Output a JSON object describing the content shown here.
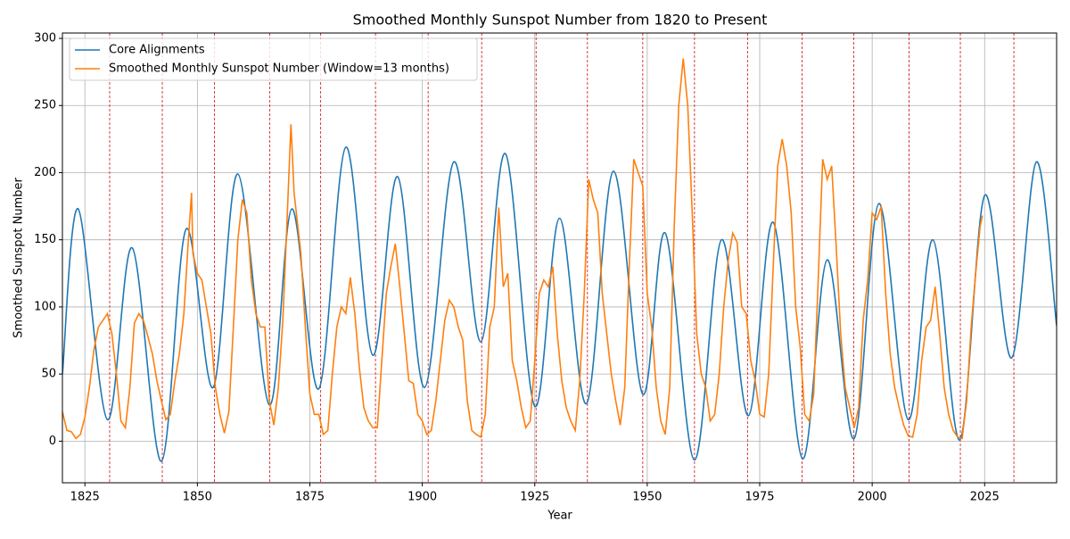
{
  "chart_data": {
    "type": "line",
    "title": "Smoothed Monthly Sunspot Number from 1820 to Present",
    "xlabel": "Year",
    "ylabel": "Smoothed Sunspot Number",
    "xlim": [
      1820,
      2041
    ],
    "ylim": [
      -31,
      304
    ],
    "xticks": [
      1825,
      1850,
      1875,
      1900,
      1925,
      1950,
      1975,
      2000,
      2025
    ],
    "yticks": [
      0,
      50,
      100,
      150,
      200,
      250,
      300
    ],
    "grid": true,
    "legend": "upper left",
    "cycle_minima": {
      "color": "#d62728",
      "x": [
        1830.5,
        1842.2,
        1853.8,
        1866.1,
        1877.4,
        1889.6,
        1901.3,
        1913.2,
        1925.3,
        1936.7,
        1949.0,
        1960.5,
        1972.3,
        1984.4,
        1995.9,
        2008.2,
        2019.6,
        2031.5
      ]
    },
    "series": [
      {
        "name": "Core Alignments",
        "color": "#1f77b4",
        "smooth": true,
        "x": [
          1820,
          1823.5,
          1830,
          1835.5,
          1842,
          1847.5,
          1853.5,
          1859,
          1866,
          1871,
          1877,
          1883,
          1889,
          1894.5,
          1900.5,
          1907,
          1913,
          1918.5,
          1925,
          1930.5,
          1936.5,
          1942.5,
          1949,
          1954,
          1960.5,
          1966.5,
          1972.5,
          1978,
          1984.5,
          1990,
          1996,
          2001.5,
          2008,
          2013.5,
          2019.5,
          2025,
          2031,
          2036.5,
          2041
        ],
        "values": [
          50,
          173,
          16,
          144,
          -15,
          158,
          40,
          199,
          27,
          173,
          39,
          219,
          64,
          197,
          40,
          208,
          74,
          214,
          26,
          166,
          28,
          201,
          35,
          155,
          -14,
          150,
          19,
          163,
          -13,
          135,
          2,
          177,
          16,
          150,
          1,
          183,
          62,
          208,
          86
        ]
      },
      {
        "name": "Smoothed Monthly Sunspot Number (Window=13 months)",
        "color": "#ff7f0e",
        "smooth": false,
        "x": [
          1820,
          1821,
          1822,
          1823,
          1824,
          1825,
          1826,
          1827,
          1828,
          1829,
          1830,
          1831,
          1832,
          1833,
          1834,
          1835,
          1836,
          1837,
          1838,
          1839,
          1840,
          1841,
          1842,
          1843,
          1844,
          1845,
          1846,
          1847,
          1848,
          1848.7,
          1849,
          1850,
          1851,
          1852,
          1853,
          1854,
          1855,
          1856,
          1857,
          1858,
          1859,
          1860,
          1861,
          1862,
          1863,
          1864,
          1865,
          1866,
          1867,
          1868,
          1869,
          1870,
          1870.8,
          1871.5,
          1872,
          1873,
          1874,
          1875,
          1876,
          1877,
          1878,
          1879,
          1880,
          1881,
          1882,
          1883,
          1884,
          1885,
          1886,
          1887,
          1888,
          1889,
          1890,
          1891,
          1892,
          1893,
          1894,
          1895,
          1896,
          1897,
          1898,
          1899,
          1900,
          1901,
          1902,
          1903,
          1904,
          1905,
          1906,
          1907,
          1908,
          1909,
          1910,
          1911,
          1912,
          1913,
          1914,
          1915,
          1916,
          1917,
          1918,
          1919,
          1920,
          1921,
          1922,
          1923,
          1924,
          1925,
          1926,
          1927,
          1928,
          1929,
          1930,
          1931,
          1932,
          1933,
          1934,
          1935,
          1936,
          1937,
          1938,
          1939,
          1940,
          1941,
          1942,
          1943,
          1944,
          1945,
          1946,
          1947,
          1948,
          1949,
          1950,
          1951,
          1952,
          1953,
          1954,
          1955,
          1956,
          1957,
          1958,
          1959,
          1960,
          1961,
          1962,
          1963,
          1964,
          1965,
          1966,
          1967,
          1968,
          1969,
          1970,
          1971,
          1972,
          1973,
          1974,
          1975,
          1976,
          1977,
          1978,
          1979,
          1980,
          1981,
          1982,
          1983,
          1984,
          1985,
          1986,
          1987,
          1988,
          1989,
          1990,
          1991,
          1992,
          1993,
          1994,
          1995,
          1996,
          1997,
          1998,
          1999,
          2000,
          2001,
          2002,
          2003,
          2004,
          2005,
          2006,
          2007,
          2008,
          2009,
          2010,
          2011,
          2012,
          2013,
          2014,
          2015,
          2016,
          2017,
          2018,
          2019,
          2020,
          2021,
          2022,
          2023,
          2024,
          2024.5
        ],
        "values": [
          22,
          8,
          7,
          2,
          5,
          18,
          40,
          68,
          85,
          90,
          95,
          80,
          50,
          15,
          10,
          40,
          88,
          95,
          90,
          78,
          65,
          45,
          30,
          16,
          20,
          45,
          65,
          95,
          150,
          185,
          140,
          125,
          120,
          100,
          80,
          40,
          20,
          6,
          22,
          85,
          150,
          180,
          170,
          120,
          95,
          85,
          85,
          30,
          12,
          40,
          90,
          170,
          236,
          185,
          170,
          140,
          85,
          35,
          20,
          20,
          5,
          8,
          50,
          85,
          100,
          95,
          122,
          95,
          55,
          25,
          15,
          10,
          10,
          60,
          110,
          130,
          147,
          115,
          80,
          45,
          43,
          20,
          15,
          5,
          8,
          30,
          60,
          90,
          105,
          100,
          85,
          75,
          30,
          8,
          5,
          3,
          20,
          85,
          100,
          174,
          115,
          125,
          60,
          45,
          25,
          10,
          15,
          60,
          110,
          120,
          115,
          130,
          80,
          45,
          25,
          15,
          8,
          45,
          110,
          195,
          180,
          170,
          110,
          80,
          50,
          30,
          12,
          40,
          130,
          210,
          200,
          190,
          110,
          85,
          40,
          15,
          5,
          40,
          160,
          250,
          285,
          250,
          170,
          80,
          50,
          40,
          15,
          20,
          50,
          100,
          135,
          155,
          148,
          100,
          95,
          60,
          45,
          20,
          18,
          50,
          130,
          205,
          225,
          205,
          170,
          100,
          70,
          20,
          15,
          35,
          120,
          210,
          195,
          205,
          145,
          80,
          40,
          25,
          10,
          25,
          90,
          120,
          170,
          165,
          175,
          110,
          65,
          40,
          25,
          12,
          4,
          3,
          20,
          60,
          85,
          90,
          115,
          80,
          40,
          20,
          8,
          3,
          2,
          30,
          85,
          125,
          160,
          168
        ]
      }
    ]
  }
}
